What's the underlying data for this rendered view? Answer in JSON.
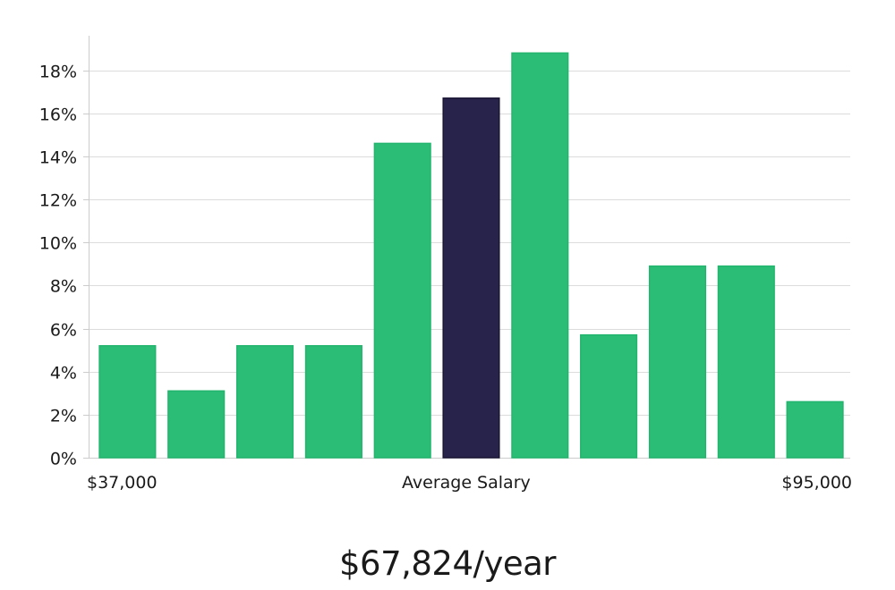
{
  "chart_data": {
    "type": "bar",
    "values": [
      5.2,
      3.1,
      5.2,
      5.2,
      14.6,
      16.7,
      18.8,
      5.7,
      8.9,
      8.9,
      2.6
    ],
    "highlight_index": 5,
    "ylim": [
      0,
      19.6
    ],
    "yticks": [
      0,
      2,
      4,
      6,
      8,
      10,
      12,
      14,
      16,
      18
    ],
    "ytick_suffix": "%",
    "xlabel_min": "$37,000",
    "xlabel_center": "Average Salary",
    "xlabel_max": "$95,000",
    "grid": true,
    "colors": {
      "bar": "#2bbd76",
      "bar_border": "#22b56d",
      "highlight": "#28234a",
      "highlight_border": "#1a1634",
      "grid": "#dcdcdc",
      "axis": "#cccccc",
      "text": "#1a1a1a"
    }
  },
  "salary": {
    "figure": "$67,824/year"
  }
}
